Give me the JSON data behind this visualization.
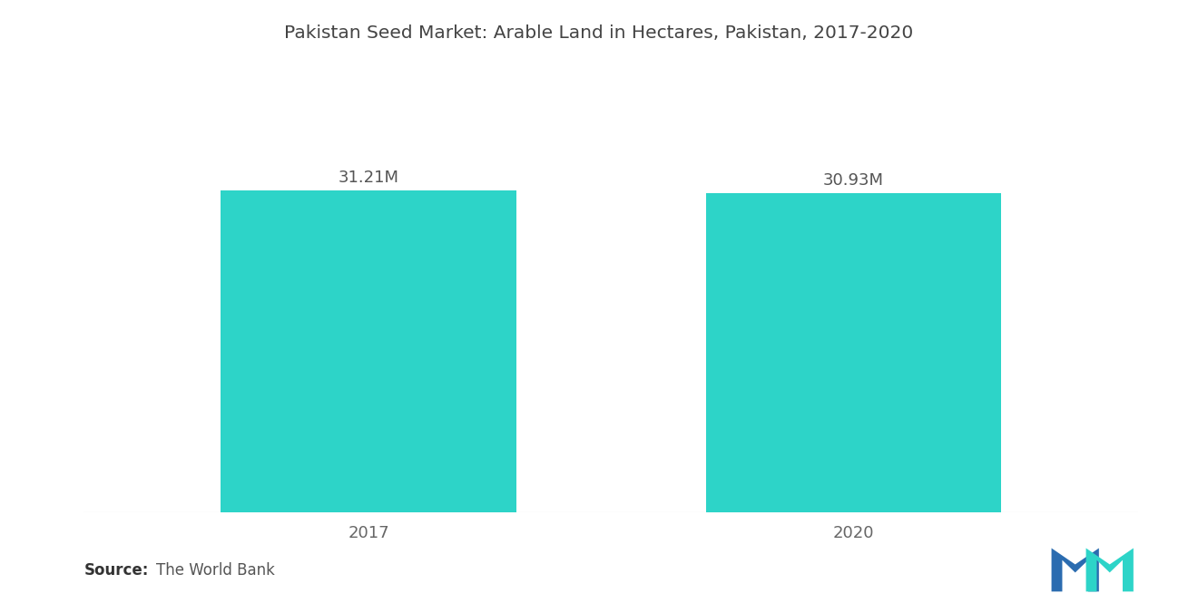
{
  "title": "Pakistan Seed Market: Arable Land in Hectares, Pakistan, 2017-2020",
  "categories": [
    "2017",
    "2020"
  ],
  "values": [
    31.21,
    30.93
  ],
  "labels": [
    "31.21M",
    "30.93M"
  ],
  "bar_color": "#2DD4C8",
  "source_bold": "Source:",
  "source_text": "The World Bank",
  "background_color": "#ffffff",
  "title_fontsize": 14.5,
  "label_fontsize": 13,
  "tick_fontsize": 13,
  "source_fontsize": 12,
  "ylim": [
    0,
    38
  ],
  "bar_width": 0.28,
  "x_positions": [
    0.27,
    0.73
  ],
  "xlim": [
    0,
    1
  ],
  "logo_dark_blue": "#2B6CB0",
  "logo_teal": "#2DD4C8"
}
